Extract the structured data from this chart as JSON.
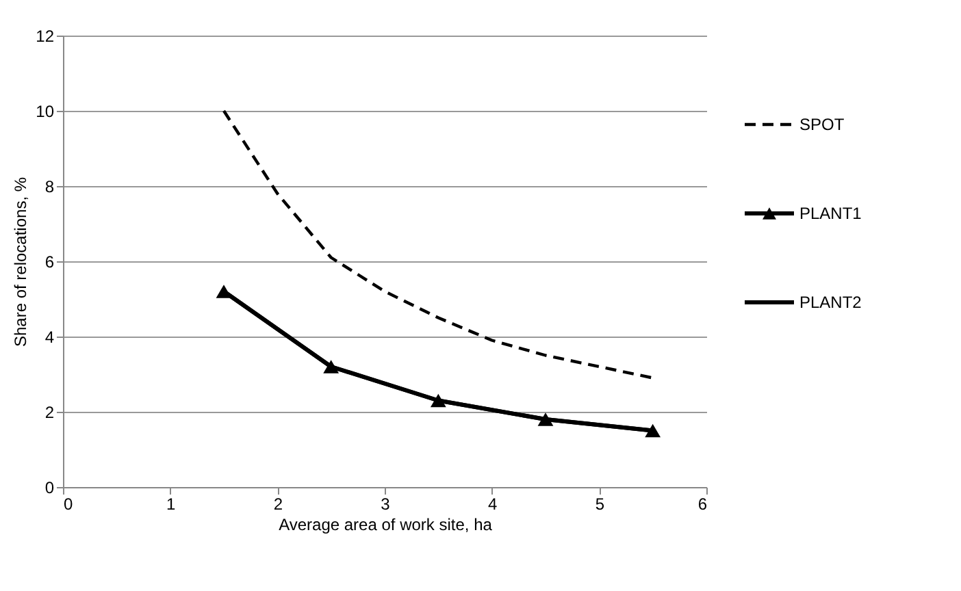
{
  "chart_data": {
    "type": "line",
    "xlabel": "Average area of work site, ha",
    "ylabel": "Share of relocations, %",
    "xlim": [
      0,
      6
    ],
    "xticks": [
      0,
      1,
      2,
      3,
      4,
      5,
      6
    ],
    "ylim": [
      0,
      12
    ],
    "yticks": [
      0,
      2,
      4,
      6,
      8,
      10,
      12
    ],
    "grid": "y",
    "legend": "right",
    "series": [
      {
        "name": "SPOT",
        "color": "#000000",
        "line_style": "dashed",
        "marker": "none",
        "x": [
          1.5,
          2,
          2.5,
          3,
          3.5,
          4,
          4.5,
          5,
          5.5
        ],
        "values": [
          10,
          7.8,
          6.1,
          5.2,
          4.5,
          3.9,
          3.5,
          3.2,
          2.9
        ]
      },
      {
        "name": "PLANT1",
        "color": "#000000",
        "line_style": "solid",
        "marker": "triangle",
        "x": [
          1.5,
          2.5,
          3.5,
          4.5,
          5.5
        ],
        "values": [
          5.2,
          3.2,
          2.3,
          1.8,
          1.5
        ]
      },
      {
        "name": "PLANT2",
        "color": "#000000",
        "line_style": "solid",
        "marker": "none",
        "x": [
          1.5,
          2.5,
          3.5,
          4.5,
          5.5
        ],
        "values": [
          5.2,
          3.2,
          2.3,
          1.8,
          1.5
        ]
      }
    ]
  }
}
